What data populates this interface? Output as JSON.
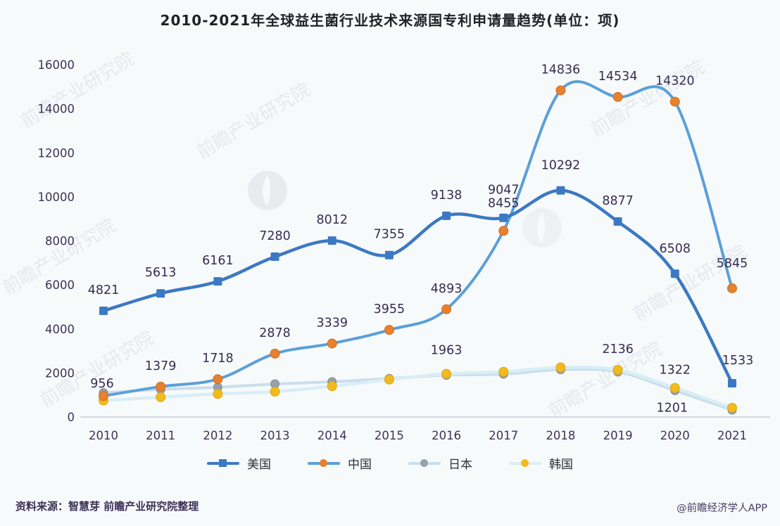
{
  "page": {
    "source_note": "资料来源：智慧芽 前瞻产业研究院整理",
    "credit": "@前瞻经济学人APP",
    "watermark_text": "前瞻产业研究院"
  },
  "chart_data": {
    "type": "line",
    "title": "2010-2021年全球益生菌行业技术来源国专利申请量趋势(单位：项)",
    "x_categories": [
      "2010",
      "2011",
      "2012",
      "2013",
      "2014",
      "2015",
      "2016",
      "2017",
      "2018",
      "2019",
      "2020",
      "2021"
    ],
    "ylim": [
      0,
      16000
    ],
    "yticks": [
      0,
      2000,
      4000,
      6000,
      8000,
      10000,
      12000,
      14000,
      16000
    ],
    "grid": false,
    "legend_position": "bottom",
    "tick_color": "#3d3357",
    "label_color": "#362d52",
    "axis_color": "#c9cfd6",
    "draw_order": [
      "japan",
      "korea",
      "china",
      "usa"
    ],
    "series": [
      {
        "id": "usa",
        "name": "美国",
        "line_color": "#3c79c4",
        "marker": "square",
        "marker_color": "#3c79c4",
        "marker_r": 6,
        "line_width": 4.5,
        "values": [
          4821,
          5613,
          6161,
          7280,
          8012,
          7355,
          9138,
          9047,
          10292,
          8877,
          6508,
          1533
        ],
        "labels": [
          "4821",
          "5613",
          "6161",
          "7280",
          "8012",
          "7355",
          "9138",
          "9047",
          "10292",
          "8877",
          "6508",
          "1533"
        ],
        "label_dy": -24,
        "label_offsets": {
          "7": [
            0,
            -34
          ],
          "8": [
            0,
            -30
          ],
          "10": [
            0,
            -30
          ],
          "11": [
            8,
            -27
          ]
        }
      },
      {
        "id": "china",
        "name": "中国",
        "line_color": "#5ba0d8",
        "marker": "circle",
        "marker_color": "#e8802d",
        "marker_stroke": "#d06f23",
        "marker_r": 6.5,
        "line_width": 4,
        "values": [
          956,
          1379,
          1718,
          2878,
          3339,
          3955,
          4893,
          8455,
          14836,
          14534,
          14320,
          5845
        ],
        "labels": [
          "956",
          "1379",
          "1718",
          "2878",
          "3339",
          "3955",
          "4893",
          "8455",
          "14836",
          "14534",
          "14320",
          "5845"
        ],
        "label_dy": -24,
        "label_offsets": {
          "0": [
            -2,
            -12
          ],
          "7": [
            0,
            -34
          ],
          "11": [
            0,
            -30
          ]
        }
      },
      {
        "id": "japan",
        "name": "日本",
        "line_color": "#cadeeb",
        "marker": "circle",
        "marker_color": "#98a0a8",
        "marker_stroke": "#868d94",
        "marker_r": 6,
        "line_width": 4,
        "values": [
          1100,
          1250,
          1350,
          1500,
          1600,
          1750,
          1900,
          1950,
          2150,
          2050,
          1201,
          320
        ],
        "labels": [
          null,
          null,
          null,
          null,
          null,
          null,
          null,
          null,
          null,
          null,
          "1201",
          null
        ],
        "label_dy": -20,
        "label_offsets": {
          "10": [
            -4,
            30
          ]
        }
      },
      {
        "id": "korea",
        "name": "韩国",
        "line_color": "#d9eef6",
        "marker": "circle",
        "marker_color": "#f2ba1d",
        "marker_stroke": "#e0a90f",
        "marker_r": 6.5,
        "line_width": 4.5,
        "values": [
          750,
          900,
          1050,
          1150,
          1400,
          1700,
          1963,
          2050,
          2250,
          2136,
          1322,
          420
        ],
        "labels": [
          null,
          null,
          null,
          null,
          null,
          null,
          "1963",
          null,
          null,
          "2136",
          "1322",
          null
        ],
        "label_dy": -22,
        "label_offsets": {
          "6": [
            0,
            -28
          ],
          "9": [
            0,
            -24
          ],
          "10": [
            0,
            -20
          ]
        }
      }
    ]
  }
}
